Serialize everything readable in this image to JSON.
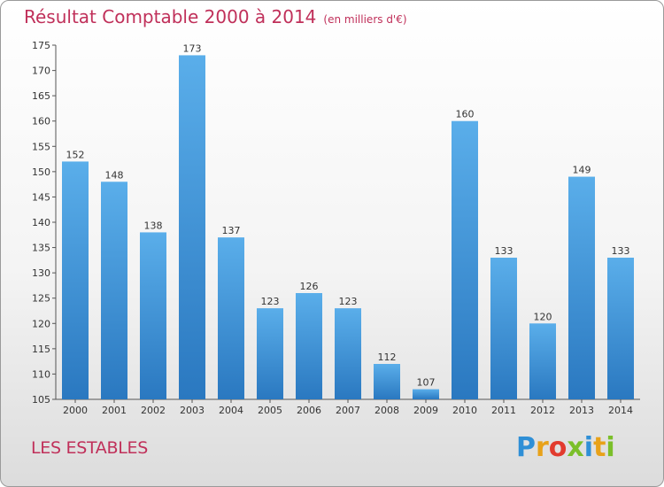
{
  "header": {
    "title": "Résultat Comptable 2000 à 2014",
    "subtitle": "(en milliers d'€)"
  },
  "footer": {
    "place": "LES ESTABLES",
    "logo_letters": [
      "P",
      "r",
      "o",
      "x",
      "i",
      "t",
      "i"
    ],
    "logo_colors": [
      "#2f8fd6",
      "#e8a21a",
      "#e23b2e",
      "#7bbf2a",
      "#2f8fd6",
      "#e8a21a",
      "#7bbf2a"
    ]
  },
  "chart_data": {
    "type": "bar",
    "title": "Résultat Comptable 2000 à 2014",
    "subtitle": "(en milliers d'€)",
    "categories": [
      "2000",
      "2001",
      "2002",
      "2003",
      "2004",
      "2005",
      "2006",
      "2007",
      "2008",
      "2009",
      "2010",
      "2011",
      "2012",
      "2013",
      "2014"
    ],
    "values": [
      152,
      148,
      138,
      173,
      137,
      123,
      126,
      123,
      112,
      107,
      160,
      133,
      120,
      149,
      133
    ],
    "data_labels": [
      "152",
      "148",
      "138",
      "173",
      "137",
      "123",
      "126",
      "123",
      "112",
      "107",
      "160",
      "133",
      "120",
      "149",
      "133"
    ],
    "ylim": [
      105,
      175
    ],
    "yticks": [
      "105",
      "110",
      "115",
      "120",
      "125",
      "130",
      "135",
      "140",
      "145",
      "150",
      "155",
      "160",
      "165",
      "170",
      "175"
    ],
    "ytick_values": [
      105,
      110,
      115,
      120,
      125,
      130,
      135,
      140,
      145,
      150,
      155,
      160,
      165,
      170,
      175
    ],
    "grid": false,
    "legend": "none",
    "bar_color_top": "#5aaeea",
    "bar_color_bottom": "#2a78c0",
    "text_color": "#333333",
    "title_color": "#c0305a"
  }
}
